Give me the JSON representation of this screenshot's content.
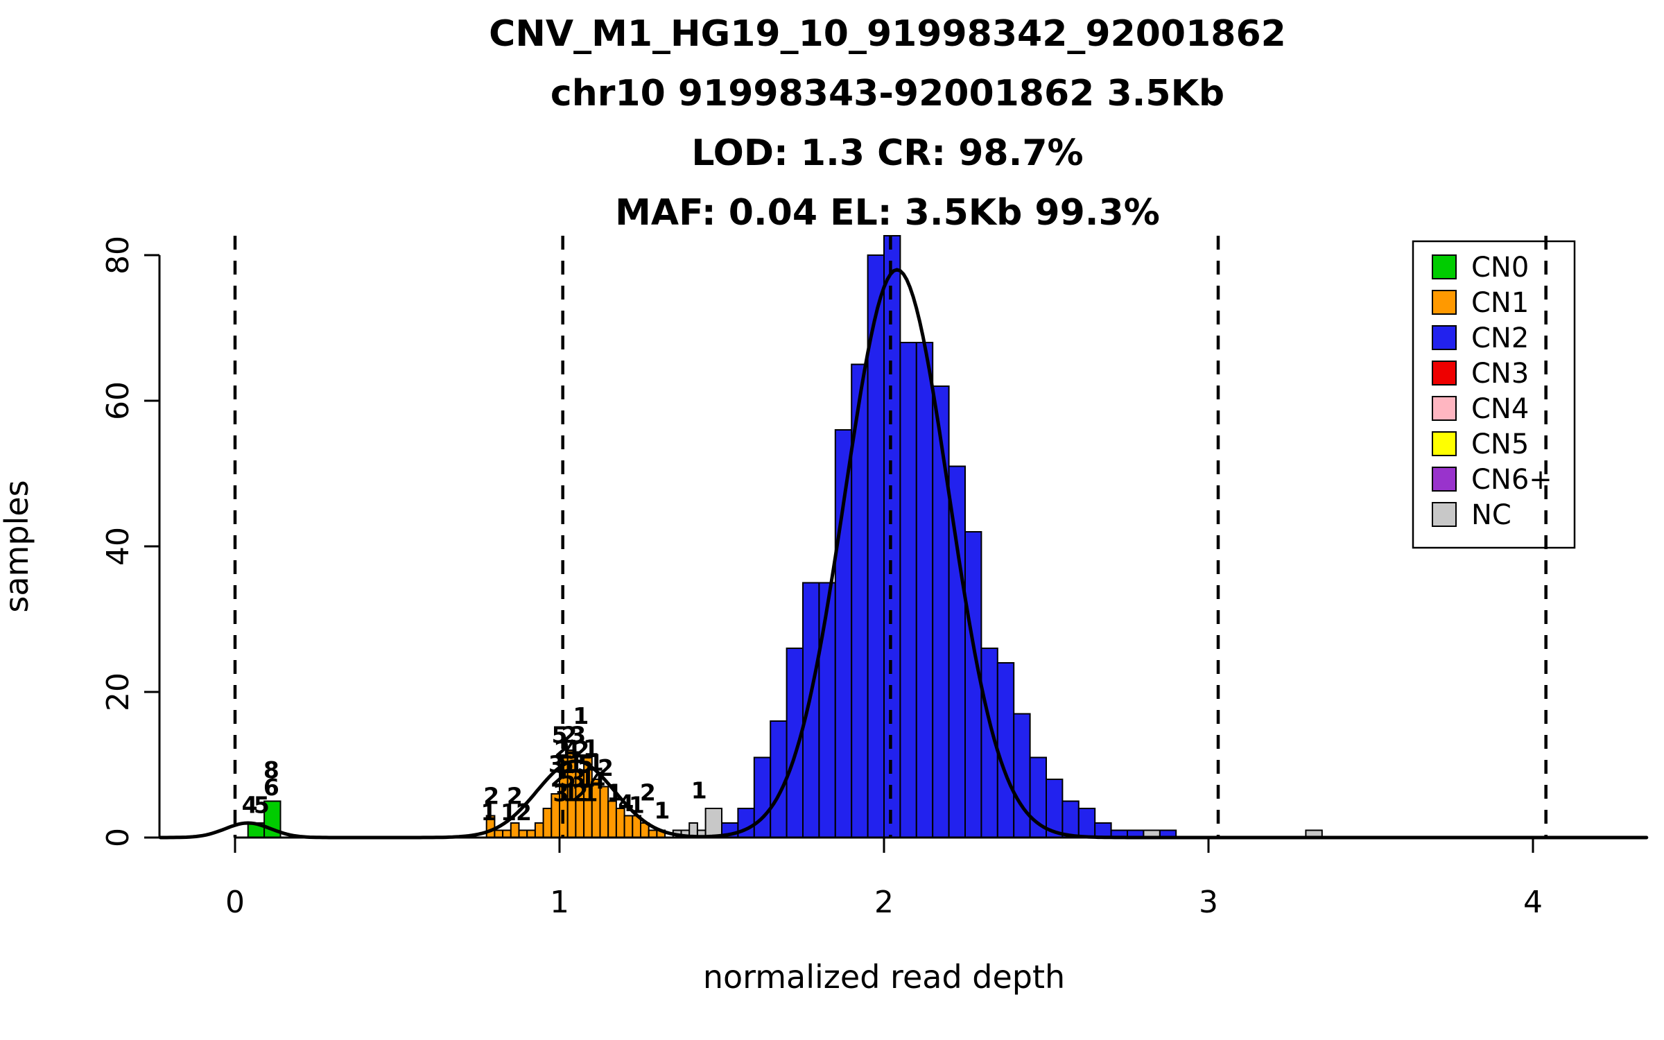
{
  "chart_data": {
    "type": "histogram",
    "title_lines": [
      "CNV_M1_HG19_10_91998342_92001862",
      "chr10 91998343-92001862 3.5Kb",
      "LOD: 1.3 CR: 98.7%",
      "MAF: 0.04 EL: 3.5Kb 99.3%"
    ],
    "xlabel": "normalized read depth",
    "ylabel": "samples",
    "x_ticks": [
      0,
      1,
      2,
      3,
      4
    ],
    "y_ticks": [
      0,
      20,
      40,
      60,
      80
    ],
    "xlim": [
      -0.23,
      4.35
    ],
    "ylim": [
      0,
      82.7
    ],
    "grid": false,
    "dashed_lines_x": [
      0,
      1.01,
      2.02,
      3.03,
      4.04
    ],
    "series": [
      {
        "name": "CN0",
        "color": "#00CC00",
        "bin_width": 0.05,
        "bins": [
          [
            0.04,
            2
          ],
          [
            0.09,
            5
          ]
        ]
      },
      {
        "name": "CN1",
        "color": "#FF9900",
        "bin_width": 0.025,
        "bins": [
          [
            0.775,
            3
          ],
          [
            0.8,
            1
          ],
          [
            0.825,
            1
          ],
          [
            0.85,
            2
          ],
          [
            0.875,
            1
          ],
          [
            0.9,
            1
          ],
          [
            0.925,
            2
          ],
          [
            0.95,
            4
          ],
          [
            0.975,
            6
          ],
          [
            1.0,
            11
          ],
          [
            1.025,
            12
          ],
          [
            1.05,
            9
          ],
          [
            1.075,
            11
          ],
          [
            1.1,
            8
          ],
          [
            1.125,
            7
          ],
          [
            1.15,
            5
          ],
          [
            1.175,
            4
          ],
          [
            1.2,
            3
          ],
          [
            1.225,
            3
          ],
          [
            1.25,
            2
          ],
          [
            1.275,
            1
          ],
          [
            1.3,
            1
          ]
        ]
      },
      {
        "name": "CN2",
        "color": "#2222EE",
        "bin_width": 0.05,
        "bins": [
          [
            1.5,
            2
          ],
          [
            1.55,
            4
          ],
          [
            1.6,
            11
          ],
          [
            1.65,
            16
          ],
          [
            1.7,
            26
          ],
          [
            1.75,
            35
          ],
          [
            1.8,
            35
          ],
          [
            1.85,
            56
          ],
          [
            1.9,
            65
          ],
          [
            1.95,
            80
          ],
          [
            2.0,
            90
          ],
          [
            2.05,
            68
          ],
          [
            2.1,
            68
          ],
          [
            2.15,
            62
          ],
          [
            2.2,
            51
          ],
          [
            2.25,
            42
          ],
          [
            2.3,
            26
          ],
          [
            2.35,
            24
          ],
          [
            2.4,
            17
          ],
          [
            2.45,
            11
          ],
          [
            2.5,
            8
          ],
          [
            2.55,
            5
          ],
          [
            2.6,
            4
          ],
          [
            2.65,
            2
          ],
          [
            2.7,
            1
          ],
          [
            2.75,
            1
          ],
          [
            2.85,
            1
          ]
        ]
      },
      {
        "name": "NC",
        "color": "#C8C8C8",
        "bin_width": 0.025,
        "bins": [
          [
            1.35,
            1
          ],
          [
            1.375,
            1
          ],
          [
            1.4,
            2
          ],
          [
            1.425,
            1
          ],
          [
            1.45,
            4,
            0.05
          ],
          [
            2.8,
            1,
            0.05
          ],
          [
            3.3,
            1,
            0.05
          ]
        ]
      }
    ],
    "density_curve": {
      "color": "#000000",
      "components": [
        {
          "peak": 2.0,
          "mean": 0.04,
          "sd": 0.07
        },
        {
          "peak": 10.5,
          "mean": 1.05,
          "sd": 0.12
        },
        {
          "peak": 78.0,
          "mean": 2.04,
          "sd": 0.16
        }
      ]
    },
    "point_labels": [
      [
        0.045,
        3.4,
        "4"
      ],
      [
        0.082,
        3.4,
        "5"
      ],
      [
        0.112,
        5.8,
        "6"
      ],
      [
        0.112,
        8.2,
        "8"
      ],
      [
        0.79,
        4.6,
        "2"
      ],
      [
        0.782,
        2.4,
        "1"
      ],
      [
        0.862,
        4.6,
        "2"
      ],
      [
        0.843,
        2.4,
        "1"
      ],
      [
        0.89,
        2.4,
        "2"
      ],
      [
        1.066,
        15.6,
        "1"
      ],
      [
        1.0,
        13.0,
        "5"
      ],
      [
        1.03,
        13.0,
        "2"
      ],
      [
        1.057,
        13.0,
        "3"
      ],
      [
        1.008,
        11.0,
        "2"
      ],
      [
        1.038,
        11.0,
        "4"
      ],
      [
        1.068,
        11.0,
        "2"
      ],
      [
        1.097,
        11.2,
        "1"
      ],
      [
        0.99,
        9.0,
        "3"
      ],
      [
        1.02,
        9.0,
        "5"
      ],
      [
        1.05,
        9.0,
        "1"
      ],
      [
        1.08,
        9.0,
        "5"
      ],
      [
        1.112,
        9.2,
        "1"
      ],
      [
        1.142,
        8.5,
        "2"
      ],
      [
        0.996,
        7.0,
        "2"
      ],
      [
        1.026,
        7.0,
        "5"
      ],
      [
        1.056,
        7.0,
        "3"
      ],
      [
        1.086,
        7.0,
        "1"
      ],
      [
        1.117,
        6.7,
        "4"
      ],
      [
        1.004,
        5.0,
        "3"
      ],
      [
        1.034,
        5.0,
        "1"
      ],
      [
        1.064,
        5.0,
        "2"
      ],
      [
        1.094,
        5.0,
        "1"
      ],
      [
        1.17,
        5.1,
        "1"
      ],
      [
        1.205,
        3.6,
        "4"
      ],
      [
        1.238,
        3.4,
        "1"
      ],
      [
        1.272,
        5.1,
        "2"
      ],
      [
        1.316,
        2.6,
        "1"
      ],
      [
        1.43,
        5.4,
        "1"
      ]
    ],
    "legend": {
      "position": "top-right",
      "items": [
        {
          "label": "CN0",
          "color": "#00CC00"
        },
        {
          "label": "CN1",
          "color": "#FF9900"
        },
        {
          "label": "CN2",
          "color": "#2222EE"
        },
        {
          "label": "CN3",
          "color": "#EE0000"
        },
        {
          "label": "CN4",
          "color": "#FFB6C1"
        },
        {
          "label": "CN5",
          "color": "#FFFF00"
        },
        {
          "label": "CN6+",
          "color": "#9933CC"
        },
        {
          "label": "NC",
          "color": "#C8C8C8"
        }
      ]
    }
  }
}
